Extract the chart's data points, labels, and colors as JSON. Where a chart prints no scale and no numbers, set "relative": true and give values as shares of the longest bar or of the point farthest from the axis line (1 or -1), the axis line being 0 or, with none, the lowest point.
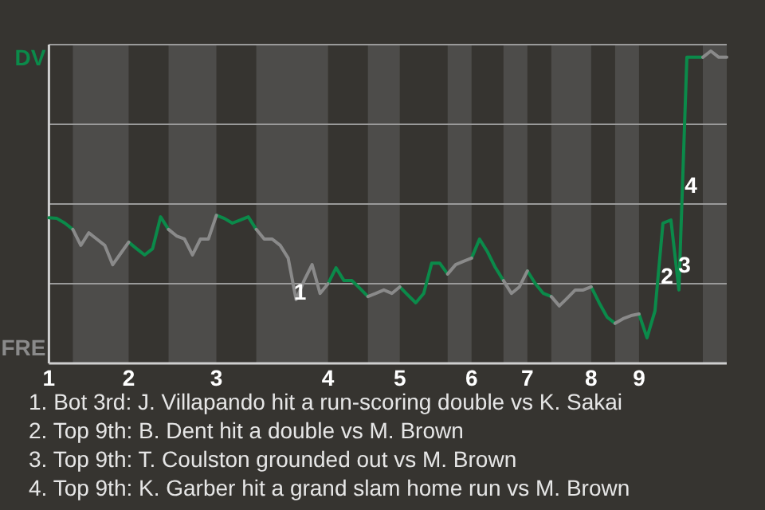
{
  "chart_data": {
    "type": "line",
    "relative": true,
    "categories": [
      "1",
      null,
      null,
      null,
      null,
      null,
      null,
      null,
      null,
      null,
      "2",
      null,
      null,
      null,
      null,
      null,
      null,
      null,
      null,
      null,
      null,
      "3",
      null,
      null,
      null,
      null,
      null,
      null,
      null,
      null,
      null,
      null,
      null,
      null,
      null,
      "4",
      null,
      null,
      null,
      null,
      null,
      null,
      null,
      null,
      "5",
      null,
      null,
      null,
      null,
      null,
      null,
      null,
      null,
      "6",
      null,
      null,
      null,
      null,
      null,
      null,
      "7",
      null,
      null,
      null,
      null,
      null,
      null,
      null,
      "8",
      null,
      null,
      null,
      null,
      null,
      "9",
      null,
      null,
      null,
      null,
      null,
      null,
      null,
      null,
      null,
      null,
      null
    ],
    "marker": "none",
    "line_style": "solid",
    "grid": true,
    "series": [
      {
        "color": "#0b8a4a",
        "values": [
          0.466,
          0.464,
          0.449,
          0.429,
          null,
          null,
          null,
          null,
          null,
          null,
          0.388,
          0.367,
          0.347,
          0.367,
          0.469,
          0.429,
          null,
          null,
          null,
          null,
          null,
          0.474,
          0.464,
          0.449,
          0.459,
          0.469,
          0.429,
          null,
          null,
          null,
          null,
          null,
          null,
          null,
          null,
          0.255,
          0.306,
          0.265,
          0.265,
          0.24,
          0.214,
          null,
          null,
          null,
          0.245,
          0.219,
          0.194,
          0.224,
          0.321,
          0.321,
          0.286,
          null,
          null,
          0.337,
          0.398,
          0.357,
          0.306,
          0.265,
          null,
          null,
          0.296,
          0.255,
          0.224,
          0.214,
          null,
          null,
          null,
          null,
          0.245,
          0.194,
          0.148,
          0.128,
          null,
          null,
          0.158,
          0.082,
          0.168,
          0.449,
          0.459,
          0.235,
          0.98,
          0.98,
          0.98,
          null,
          null,
          null
        ]
      },
      {
        "color": "#8a8a8a",
        "values": [
          null,
          null,
          null,
          0.429,
          0.378,
          0.418,
          0.398,
          0.378,
          0.316,
          0.352,
          0.388,
          null,
          null,
          null,
          null,
          0.429,
          0.408,
          0.398,
          0.347,
          0.398,
          0.398,
          0.474,
          null,
          null,
          null,
          null,
          0.429,
          0.398,
          0.398,
          0.378,
          0.337,
          0.204,
          0.265,
          0.316,
          0.224,
          0.255,
          null,
          null,
          null,
          null,
          0.214,
          0.224,
          0.235,
          0.224,
          0.245,
          null,
          null,
          null,
          null,
          null,
          0.286,
          0.316,
          0.327,
          0.337,
          null,
          null,
          null,
          0.265,
          0.224,
          0.245,
          0.296,
          null,
          null,
          0.214,
          0.184,
          0.209,
          0.235,
          0.235,
          0.245,
          null,
          null,
          0.128,
          0.143,
          0.153,
          0.158,
          null,
          null,
          null,
          null,
          null,
          null,
          null,
          0.98,
          1,
          0.98,
          0.98
        ]
      }
    ],
    "annotations": [
      "DV",
      "FRE",
      "1",
      "2",
      "3",
      "4",
      "1. Bot 3rd: J. Villapando hit a run-scoring double vs K. Sakai",
      "2. Top 9th: B. Dent hit a double vs M. Brown",
      "3. Top 9th: T. Coulston grounded out vs M. Brown",
      "4. Top 9th: K. Garber hit a grand slam home run vs M. Brown"
    ]
  }
}
